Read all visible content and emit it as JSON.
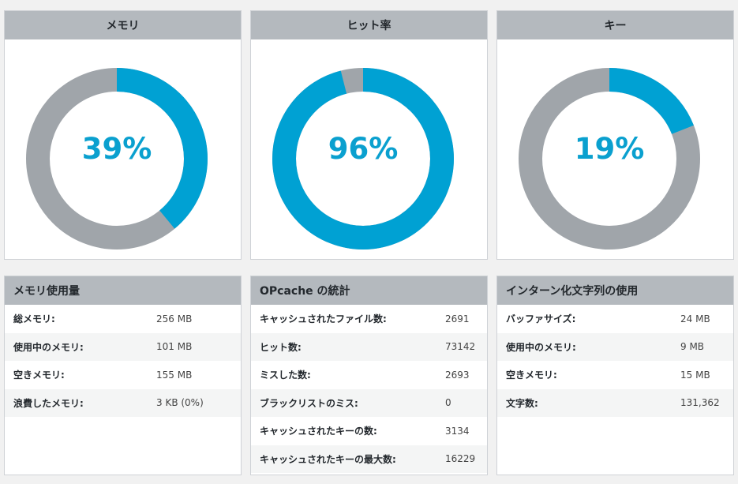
{
  "colors": {
    "accent": "#00a1d3",
    "track": "#a0a5aa",
    "header": "#b4b9be"
  },
  "gauges": [
    {
      "title": "メモリ",
      "percent_label": "39%",
      "fraction": 0.39
    },
    {
      "title": "ヒット率",
      "percent_label": "96%",
      "fraction": 0.96
    },
    {
      "title": "キー",
      "percent_label": "19%",
      "fraction": 0.19
    }
  ],
  "tables": [
    {
      "title": "メモリ使用量",
      "rows": [
        {
          "label": "総メモリ:",
          "value": "256 MB"
        },
        {
          "label": "使用中のメモリ:",
          "value": "101 MB"
        },
        {
          "label": "空きメモリ:",
          "value": "155 MB"
        },
        {
          "label": "浪費したメモリ:",
          "value": "3 KB (0%)"
        }
      ]
    },
    {
      "title": "OPcache の統計",
      "rows": [
        {
          "label": "キャッシュされたファイル数:",
          "value": "2691"
        },
        {
          "label": "ヒット数:",
          "value": "73142"
        },
        {
          "label": "ミスした数:",
          "value": "2693"
        },
        {
          "label": "ブラックリストのミス:",
          "value": "0"
        },
        {
          "label": "キャッシュされたキーの数:",
          "value": "3134"
        },
        {
          "label": "キャッシュされたキーの最大数:",
          "value": "16229"
        }
      ]
    },
    {
      "title": "インターン化文字列の使用",
      "rows": [
        {
          "label": "バッファサイズ:",
          "value": "24 MB"
        },
        {
          "label": "使用中のメモリ:",
          "value": "9 MB"
        },
        {
          "label": "空きメモリ:",
          "value": "15 MB"
        },
        {
          "label": "文字数:",
          "value": "131,362"
        }
      ]
    }
  ]
}
